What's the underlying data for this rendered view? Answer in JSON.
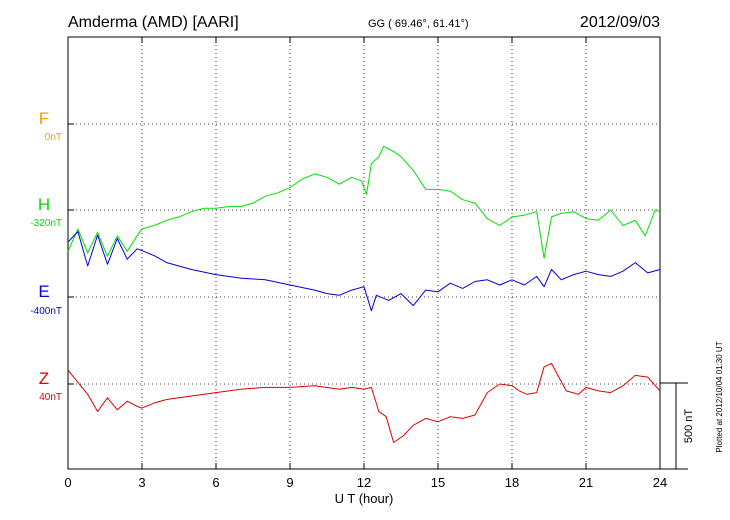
{
  "header": {
    "station": "Amderma (AMD)  [AARI]",
    "coords": "GG ( 69.46°,  61.41°)",
    "date": "2012/09/03"
  },
  "plotted_note": "Plotted at 2012/10/04 01:30 UT",
  "colors": {
    "F": "#f0a000",
    "H": "#00e000",
    "E": "#0000dd",
    "Z": "#e00000"
  },
  "chart_data": {
    "type": "line",
    "title": "",
    "xlabel": "U T (hour)",
    "ylabel": "",
    "xlim": [
      0,
      24
    ],
    "xticks": [
      "0",
      "3",
      "6",
      "9",
      "12",
      "15",
      "18",
      "21",
      "24"
    ],
    "grid": true,
    "scale_bar": {
      "label": "500 nT",
      "value_nT": 500
    },
    "channels": [
      {
        "name": "F",
        "baseline": "0nT",
        "color": "#f0a000",
        "points": []
      },
      {
        "name": "H",
        "baseline": "-320nT",
        "color": "#00e000",
        "points": [
          [
            0,
            -560
          ],
          [
            0.4,
            -430
          ],
          [
            0.8,
            -570
          ],
          [
            1.2,
            -450
          ],
          [
            1.6,
            -590
          ],
          [
            2.0,
            -470
          ],
          [
            2.4,
            -560
          ],
          [
            2.8,
            -470
          ],
          [
            3.0,
            -430
          ],
          [
            3.5,
            -410
          ],
          [
            4.0,
            -380
          ],
          [
            4.5,
            -360
          ],
          [
            5.0,
            -330
          ],
          [
            5.5,
            -310
          ],
          [
            6.0,
            -310
          ],
          [
            6.5,
            -300
          ],
          [
            7.0,
            -300
          ],
          [
            7.5,
            -280
          ],
          [
            8.0,
            -240
          ],
          [
            8.5,
            -220
          ],
          [
            9.0,
            -190
          ],
          [
            9.5,
            -140
          ],
          [
            10.0,
            -110
          ],
          [
            10.5,
            -130
          ],
          [
            11.0,
            -170
          ],
          [
            11.5,
            -130
          ],
          [
            11.9,
            -150
          ],
          [
            12.1,
            -230
          ],
          [
            12.3,
            -50
          ],
          [
            12.6,
            -10
          ],
          [
            12.8,
            50
          ],
          [
            13.2,
            20
          ],
          [
            13.5,
            -10
          ],
          [
            14.0,
            -90
          ],
          [
            14.5,
            -200
          ],
          [
            15.0,
            -200
          ],
          [
            15.5,
            -210
          ],
          [
            16.0,
            -260
          ],
          [
            16.5,
            -280
          ],
          [
            17.0,
            -370
          ],
          [
            17.5,
            -410
          ],
          [
            18.0,
            -360
          ],
          [
            18.5,
            -350
          ],
          [
            19.0,
            -330
          ],
          [
            19.3,
            -600
          ],
          [
            19.6,
            -360
          ],
          [
            20.0,
            -340
          ],
          [
            20.5,
            -330
          ],
          [
            21.0,
            -370
          ],
          [
            21.5,
            -380
          ],
          [
            22.0,
            -320
          ],
          [
            22.5,
            -410
          ],
          [
            23.0,
            -380
          ],
          [
            23.4,
            -470
          ],
          [
            23.8,
            -320
          ],
          [
            24.0,
            -330
          ]
        ]
      },
      {
        "name": "E",
        "baseline": "-400nT",
        "color": "#0000dd",
        "points": [
          [
            0,
            -80
          ],
          [
            0.4,
            -20
          ],
          [
            0.8,
            -220
          ],
          [
            1.2,
            -40
          ],
          [
            1.6,
            -210
          ],
          [
            2.0,
            -60
          ],
          [
            2.4,
            -180
          ],
          [
            2.8,
            -120
          ],
          [
            3.0,
            -130
          ],
          [
            3.5,
            -160
          ],
          [
            4.0,
            -200
          ],
          [
            4.5,
            -220
          ],
          [
            5.0,
            -240
          ],
          [
            6.0,
            -270
          ],
          [
            7.0,
            -290
          ],
          [
            8.0,
            -300
          ],
          [
            9.0,
            -330
          ],
          [
            10.0,
            -360
          ],
          [
            10.5,
            -380
          ],
          [
            11.0,
            -390
          ],
          [
            11.5,
            -360
          ],
          [
            12.0,
            -340
          ],
          [
            12.3,
            -480
          ],
          [
            12.5,
            -390
          ],
          [
            13.0,
            -420
          ],
          [
            13.5,
            -380
          ],
          [
            14.0,
            -450
          ],
          [
            14.5,
            -360
          ],
          [
            15.0,
            -370
          ],
          [
            15.5,
            -320
          ],
          [
            16.0,
            -350
          ],
          [
            16.5,
            -310
          ],
          [
            17.0,
            -300
          ],
          [
            17.5,
            -330
          ],
          [
            18.0,
            -300
          ],
          [
            18.5,
            -330
          ],
          [
            19.0,
            -280
          ],
          [
            19.3,
            -340
          ],
          [
            19.6,
            -240
          ],
          [
            20.0,
            -300
          ],
          [
            20.5,
            -270
          ],
          [
            21.0,
            -250
          ],
          [
            21.5,
            -270
          ],
          [
            22.0,
            -280
          ],
          [
            22.5,
            -250
          ],
          [
            23.0,
            -200
          ],
          [
            23.5,
            -260
          ],
          [
            24.0,
            -240
          ]
        ]
      },
      {
        "name": "Z",
        "baseline": "40nT",
        "color": "#e00000",
        "points": [
          [
            0,
            120
          ],
          [
            0.4,
            50
          ],
          [
            0.8,
            -20
          ],
          [
            1.2,
            -120
          ],
          [
            1.6,
            -40
          ],
          [
            2.0,
            -110
          ],
          [
            2.4,
            -60
          ],
          [
            2.8,
            -90
          ],
          [
            3.0,
            -100
          ],
          [
            3.5,
            -70
          ],
          [
            4.0,
            -50
          ],
          [
            5.0,
            -30
          ],
          [
            6.0,
            -10
          ],
          [
            7.0,
            10
          ],
          [
            8.0,
            20
          ],
          [
            9.0,
            20
          ],
          [
            10.0,
            30
          ],
          [
            11.0,
            10
          ],
          [
            11.5,
            20
          ],
          [
            12.0,
            10
          ],
          [
            12.3,
            20
          ],
          [
            12.6,
            -120
          ],
          [
            12.9,
            -150
          ],
          [
            13.2,
            -300
          ],
          [
            13.6,
            -260
          ],
          [
            14.0,
            -200
          ],
          [
            14.5,
            -160
          ],
          [
            15.0,
            -180
          ],
          [
            15.5,
            -150
          ],
          [
            16.0,
            -160
          ],
          [
            16.5,
            -140
          ],
          [
            17.0,
            -10
          ],
          [
            17.5,
            40
          ],
          [
            18.0,
            30
          ],
          [
            18.3,
            0
          ],
          [
            18.6,
            -20
          ],
          [
            19.0,
            -10
          ],
          [
            19.3,
            140
          ],
          [
            19.6,
            160
          ],
          [
            19.9,
            80
          ],
          [
            20.2,
            0
          ],
          [
            20.7,
            -20
          ],
          [
            21.0,
            20
          ],
          [
            21.5,
            0
          ],
          [
            22.0,
            -10
          ],
          [
            22.5,
            30
          ],
          [
            23.0,
            90
          ],
          [
            23.5,
            80
          ],
          [
            24.0,
            0
          ]
        ]
      }
    ]
  }
}
